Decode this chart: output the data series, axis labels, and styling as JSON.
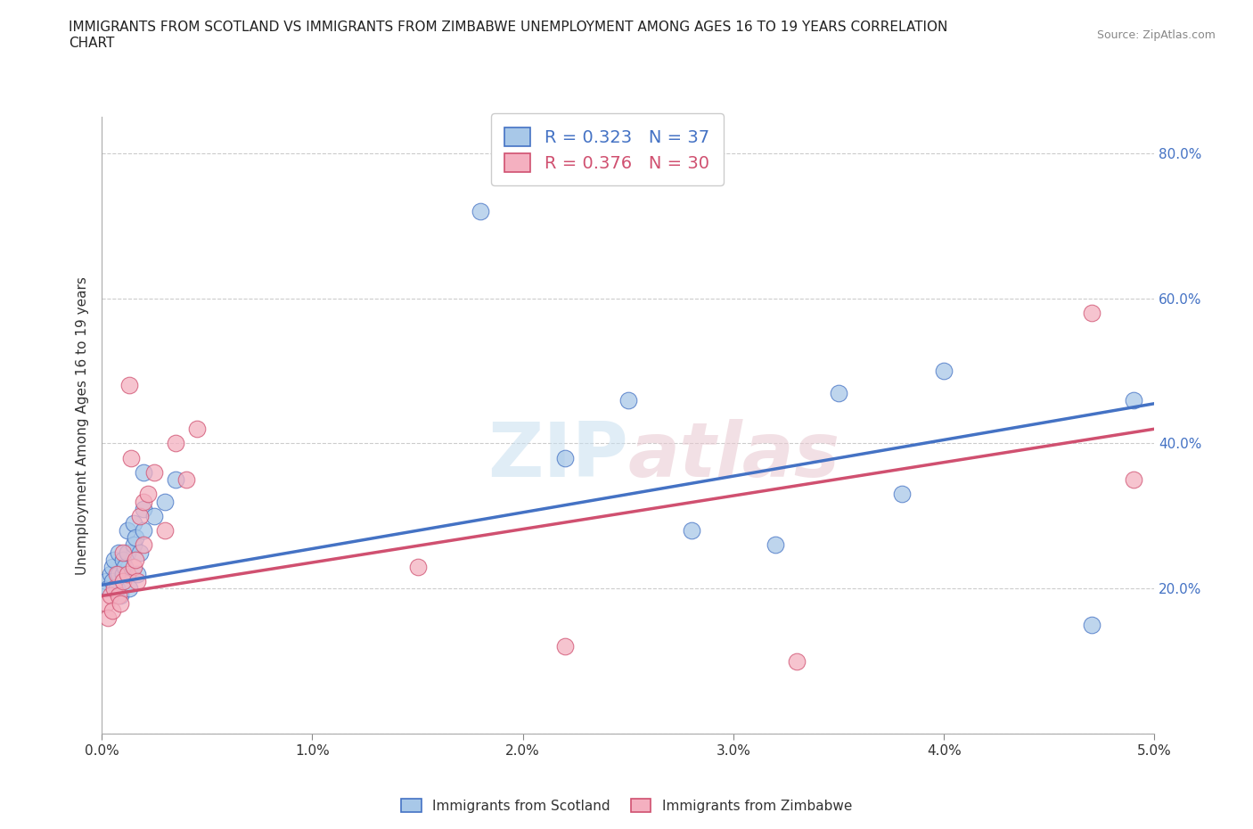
{
  "title": "IMMIGRANTS FROM SCOTLAND VS IMMIGRANTS FROM ZIMBABWE UNEMPLOYMENT AMONG AGES 16 TO 19 YEARS CORRELATION\nCHART",
  "source_text": "Source: ZipAtlas.com",
  "xlabel": "",
  "ylabel": "Unemployment Among Ages 16 to 19 years",
  "xlim": [
    0.0,
    0.05
  ],
  "ylim": [
    0.0,
    0.85
  ],
  "xticks": [
    0.0,
    0.01,
    0.02,
    0.03,
    0.04,
    0.05
  ],
  "xtick_labels": [
    "0.0%",
    "1.0%",
    "2.0%",
    "3.0%",
    "4.0%",
    "5.0%"
  ],
  "yticks": [
    0.0,
    0.2,
    0.4,
    0.6,
    0.8
  ],
  "ytick_labels": [
    "",
    "20.0%",
    "40.0%",
    "60.0%",
    "80.0%"
  ],
  "scotland_color": "#a8c8e8",
  "zimbabwe_color": "#f4b0c0",
  "scotland_line_color": "#4472c4",
  "zimbabwe_line_color": "#d05070",
  "R_scotland": 0.323,
  "N_scotland": 37,
  "R_zimbabwe": 0.376,
  "N_zimbabwe": 30,
  "watermark": "ZIPatlas",
  "scotland_x": [
    0.0002,
    0.0003,
    0.0004,
    0.0005,
    0.0005,
    0.0006,
    0.0007,
    0.0008,
    0.0008,
    0.0009,
    0.001,
    0.001,
    0.0011,
    0.0012,
    0.0012,
    0.0013,
    0.0015,
    0.0015,
    0.0016,
    0.0017,
    0.0018,
    0.002,
    0.002,
    0.002,
    0.0025,
    0.003,
    0.0035,
    0.018,
    0.022,
    0.025,
    0.028,
    0.032,
    0.035,
    0.038,
    0.04,
    0.047,
    0.049
  ],
  "scotland_y": [
    0.21,
    0.2,
    0.22,
    0.23,
    0.21,
    0.24,
    0.2,
    0.22,
    0.25,
    0.19,
    0.22,
    0.24,
    0.23,
    0.25,
    0.28,
    0.2,
    0.26,
    0.29,
    0.27,
    0.22,
    0.25,
    0.28,
    0.31,
    0.36,
    0.3,
    0.32,
    0.35,
    0.72,
    0.38,
    0.46,
    0.28,
    0.26,
    0.47,
    0.33,
    0.5,
    0.15,
    0.46
  ],
  "zimbabwe_x": [
    0.0002,
    0.0003,
    0.0004,
    0.0005,
    0.0006,
    0.0007,
    0.0008,
    0.0009,
    0.001,
    0.001,
    0.0012,
    0.0013,
    0.0014,
    0.0015,
    0.0016,
    0.0017,
    0.0018,
    0.002,
    0.002,
    0.0022,
    0.0025,
    0.003,
    0.0035,
    0.004,
    0.0045,
    0.015,
    0.022,
    0.033,
    0.047,
    0.049
  ],
  "zimbabwe_y": [
    0.18,
    0.16,
    0.19,
    0.17,
    0.2,
    0.22,
    0.19,
    0.18,
    0.21,
    0.25,
    0.22,
    0.48,
    0.38,
    0.23,
    0.24,
    0.21,
    0.3,
    0.26,
    0.32,
    0.33,
    0.36,
    0.28,
    0.4,
    0.35,
    0.42,
    0.23,
    0.12,
    0.1,
    0.58,
    0.35
  ],
  "trend_scotland_x0": 0.0,
  "trend_scotland_y0": 0.205,
  "trend_scotland_x1": 0.05,
  "trend_scotland_y1": 0.455,
  "trend_zimbabwe_x0": 0.0,
  "trend_zimbabwe_y0": 0.19,
  "trend_zimbabwe_x1": 0.05,
  "trend_zimbabwe_y1": 0.42
}
